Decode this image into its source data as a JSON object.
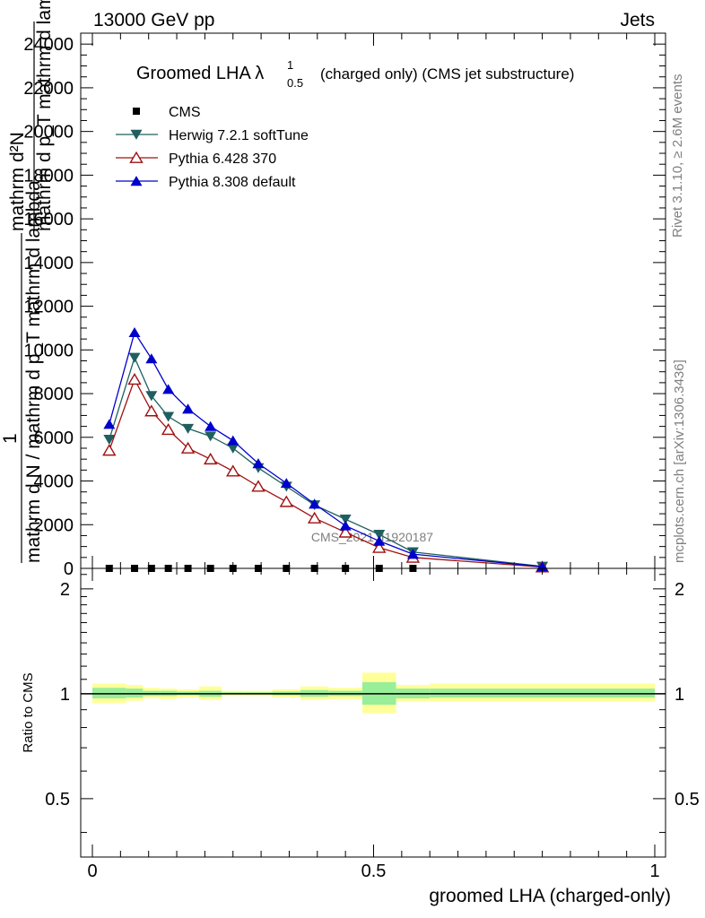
{
  "header": {
    "left": "13000 GeV pp",
    "right": "Jets"
  },
  "side_labels": {
    "rivet": "Rivet 3.1.10, ≥ 2.6M events",
    "mcplots": "mcplots.cern.ch [arXiv:1306.3436]"
  },
  "chart_data": [
    {
      "type": "line",
      "title": "Groomed LHA λ¹₀.₅ (charged only) (CMS jet substructure)",
      "title_main": "Groomed LHA λ",
      "title_sup": "1",
      "title_sub": "0.5",
      "title_rest": "(charged only) (CMS jet substructure)",
      "ylabel_lines": [
        "1",
        "mathrm d N / mathrm d p_T mathrm d lambda",
        "mathrm d²N",
        "mathrm d p_T mathrm d lambda"
      ],
      "ylabel_top": "mathrm d²N",
      "ylabel_top2": "mathrm d p_T mathrm d lambda",
      "ylabel_mid": "mathrm d N / mathrm d p_T mathrm d lambda",
      "ylabel_one": "1",
      "xlim": [
        0,
        1
      ],
      "ylim": [
        0,
        24500
      ],
      "yticks": [
        0,
        2000,
        4000,
        6000,
        8000,
        10000,
        12000,
        14000,
        16000,
        18000,
        20000,
        22000,
        24000
      ],
      "ytick_labels": [
        "0",
        "2000",
        "4000",
        "6000",
        "8000",
        "10000",
        "12000",
        "14000",
        "16000",
        "18000",
        "20000",
        "22000",
        "24000"
      ],
      "watermark": "CMS_2021_I1920187",
      "legend_position": "top-left",
      "x": [
        0.03,
        0.075,
        0.105,
        0.135,
        0.17,
        0.21,
        0.25,
        0.295,
        0.345,
        0.395,
        0.45,
        0.51,
        0.57,
        0.8
      ],
      "series": [
        {
          "name": "CMS",
          "marker": "square",
          "color": "#000000",
          "values": [
            0,
            0,
            0,
            0,
            0,
            0,
            0,
            0,
            0,
            0,
            0,
            0,
            0,
            0
          ]
        },
        {
          "name": "Herwig 7.2.1 softTune",
          "marker": "triangle-down",
          "color": "#1f5f5f",
          "values": [
            5900,
            9650,
            7900,
            6950,
            6400,
            6050,
            5500,
            4600,
            3750,
            2900,
            2250,
            1550,
            750,
            90
          ]
        },
        {
          "name": "Pythia 6.428 370",
          "marker": "triangle-open",
          "color": "#a01010",
          "values": [
            5400,
            8650,
            7200,
            6350,
            5500,
            5000,
            4450,
            3750,
            3050,
            2300,
            1650,
            950,
            500,
            60
          ]
        },
        {
          "name": "Pythia 8.308 default",
          "marker": "triangle-up",
          "color": "#0000cc",
          "values": [
            6600,
            10800,
            9600,
            8200,
            7300,
            6500,
            5850,
            4800,
            3900,
            2950,
            1950,
            1250,
            650,
            80
          ]
        }
      ]
    },
    {
      "type": "area",
      "ylabel": "Ratio to CMS",
      "xlabel": "groomed LHA (charged-only)",
      "xlim": [
        0,
        1
      ],
      "ylim": [
        0.34,
        2.29
      ],
      "yticks": [
        0.5,
        1,
        2
      ],
      "ytick_labels": [
        "0.5",
        "1",
        "2"
      ],
      "xticks": [
        0,
        0.5,
        1
      ],
      "xtick_labels": [
        "0",
        "0.5",
        "1"
      ],
      "bins": [
        {
          "lo": 0.0,
          "hi": 0.06,
          "yellow": [
            0.94,
            1.07
          ],
          "green": [
            0.97,
            1.04
          ]
        },
        {
          "lo": 0.06,
          "hi": 0.09,
          "yellow": [
            0.955,
            1.06
          ],
          "green": [
            0.975,
            1.035
          ]
        },
        {
          "lo": 0.09,
          "hi": 0.12,
          "yellow": [
            0.97,
            1.04
          ],
          "green": [
            0.985,
            1.02
          ]
        },
        {
          "lo": 0.12,
          "hi": 0.15,
          "yellow": [
            0.965,
            1.035
          ],
          "green": [
            0.985,
            1.02
          ]
        },
        {
          "lo": 0.15,
          "hi": 0.19,
          "yellow": [
            0.975,
            1.03
          ],
          "green": [
            0.99,
            1.015
          ]
        },
        {
          "lo": 0.19,
          "hi": 0.23,
          "yellow": [
            0.96,
            1.05
          ],
          "green": [
            0.98,
            1.02
          ]
        },
        {
          "lo": 0.23,
          "hi": 0.27,
          "yellow": [
            0.985,
            1.02
          ],
          "green": [
            0.995,
            1.01
          ]
        },
        {
          "lo": 0.27,
          "hi": 0.32,
          "yellow": [
            0.985,
            1.02
          ],
          "green": [
            0.995,
            1.01
          ]
        },
        {
          "lo": 0.32,
          "hi": 0.37,
          "yellow": [
            0.975,
            1.03
          ],
          "green": [
            0.99,
            1.015
          ]
        },
        {
          "lo": 0.37,
          "hi": 0.42,
          "yellow": [
            0.96,
            1.05
          ],
          "green": [
            0.98,
            1.025
          ]
        },
        {
          "lo": 0.42,
          "hi": 0.48,
          "yellow": [
            0.965,
            1.04
          ],
          "green": [
            0.985,
            1.02
          ]
        },
        {
          "lo": 0.48,
          "hi": 0.54,
          "yellow": [
            0.88,
            1.15
          ],
          "green": [
            0.93,
            1.08
          ]
        },
        {
          "lo": 0.54,
          "hi": 0.6,
          "yellow": [
            0.95,
            1.06
          ],
          "green": [
            0.97,
            1.035
          ]
        },
        {
          "lo": 0.6,
          "hi": 1.0,
          "yellow": [
            0.95,
            1.07
          ],
          "green": [
            0.975,
            1.035
          ]
        }
      ]
    }
  ]
}
